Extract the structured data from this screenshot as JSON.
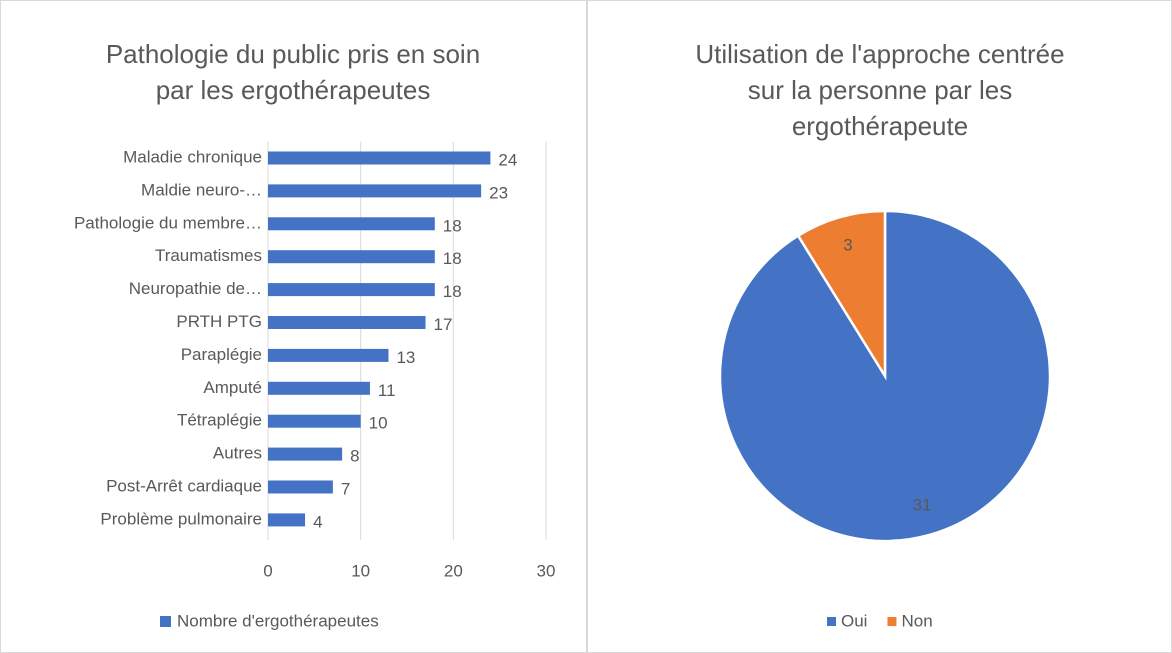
{
  "chart_data": [
    {
      "type": "barh",
      "title": [
        "Pathologie du public pris en soin",
        "par les ergothérapeutes"
      ],
      "categories": [
        "Maladie chronique",
        "Maldie neuro-…",
        "Pathologie du membre…",
        "Traumatismes",
        "Neuropathie de…",
        "PRTH PTG",
        "Paraplégie",
        "Amputé",
        "Tétraplégie",
        "Autres",
        "Post-Arrêt cardiaque",
        "Problème pulmonaire"
      ],
      "series": [
        {
          "name": "Nombre d'ergothérapeutes",
          "color": "#4472c4",
          "values": [
            24,
            23,
            18,
            18,
            18,
            17,
            13,
            11,
            10,
            8,
            7,
            4
          ]
        }
      ],
      "xlim": [
        0,
        30
      ],
      "xticks": [
        0,
        10,
        20,
        30
      ],
      "grid": true,
      "legend": "bottom"
    },
    {
      "type": "pie",
      "title": [
        "Utilisation de l'approche centrée",
        "sur la personne par les",
        "ergothérapeute"
      ],
      "categories": [
        "Oui",
        "Non"
      ],
      "values": [
        31,
        3
      ],
      "colors": [
        "#4472c4",
        "#ed7d31"
      ],
      "legend": "bottom"
    }
  ]
}
